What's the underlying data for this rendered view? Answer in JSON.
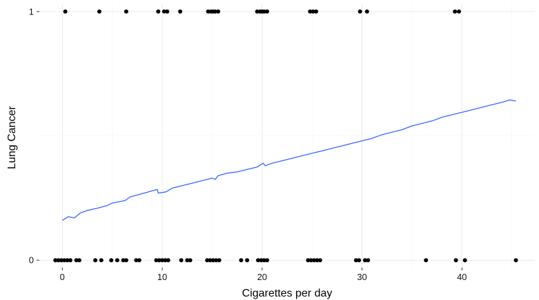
{
  "chart_data": {
    "type": "scatter",
    "title": "",
    "xlabel": "Cigarettes per day",
    "ylabel": "Lung Cancer",
    "xlim": [
      -2.3,
      47.3
    ],
    "ylim": [
      -0.03,
      1.03
    ],
    "x_ticks": [
      0,
      10,
      20,
      30,
      40
    ],
    "x_tick_labels": [
      "0",
      "10",
      "20",
      "30",
      "40"
    ],
    "y_ticks": [
      0,
      1
    ],
    "y_tick_labels": [
      "0",
      "1"
    ],
    "grid": true,
    "legend": "none",
    "series": [
      {
        "type": "scatter",
        "color": "#000000",
        "points": [
          {
            "x": 0.3,
            "y": 1
          },
          {
            "x": 3.7,
            "y": 1
          },
          {
            "x": 6.4,
            "y": 1
          },
          {
            "x": 9.6,
            "y": 1
          },
          {
            "x": 10.2,
            "y": 1
          },
          {
            "x": 10.5,
            "y": 1
          },
          {
            "x": 11.8,
            "y": 1
          },
          {
            "x": 14.6,
            "y": 1
          },
          {
            "x": 14.9,
            "y": 1
          },
          {
            "x": 15.1,
            "y": 1
          },
          {
            "x": 15.3,
            "y": 1
          },
          {
            "x": 15.6,
            "y": 1
          },
          {
            "x": 19.5,
            "y": 1
          },
          {
            "x": 19.8,
            "y": 1
          },
          {
            "x": 20.0,
            "y": 1
          },
          {
            "x": 20.2,
            "y": 1
          },
          {
            "x": 20.5,
            "y": 1
          },
          {
            "x": 24.8,
            "y": 1
          },
          {
            "x": 25.1,
            "y": 1
          },
          {
            "x": 25.4,
            "y": 1
          },
          {
            "x": 29.8,
            "y": 1
          },
          {
            "x": 30.5,
            "y": 1
          },
          {
            "x": 39.3,
            "y": 1
          },
          {
            "x": 39.7,
            "y": 1
          },
          {
            "x": -0.7,
            "y": 0
          },
          {
            "x": -0.4,
            "y": 0
          },
          {
            "x": -0.1,
            "y": 0
          },
          {
            "x": 0.2,
            "y": 0
          },
          {
            "x": 0.5,
            "y": 0
          },
          {
            "x": 0.8,
            "y": 0
          },
          {
            "x": 1.4,
            "y": 0
          },
          {
            "x": 1.7,
            "y": 0
          },
          {
            "x": 3.3,
            "y": 0
          },
          {
            "x": 3.9,
            "y": 0
          },
          {
            "x": 4.9,
            "y": 0
          },
          {
            "x": 5.5,
            "y": 0
          },
          {
            "x": 6.1,
            "y": 0
          },
          {
            "x": 6.4,
            "y": 0
          },
          {
            "x": 7.4,
            "y": 0
          },
          {
            "x": 7.7,
            "y": 0
          },
          {
            "x": 9.4,
            "y": 0
          },
          {
            "x": 9.7,
            "y": 0
          },
          {
            "x": 10.0,
            "y": 0
          },
          {
            "x": 10.3,
            "y": 0
          },
          {
            "x": 10.6,
            "y": 0
          },
          {
            "x": 11.9,
            "y": 0
          },
          {
            "x": 12.5,
            "y": 0
          },
          {
            "x": 12.8,
            "y": 0
          },
          {
            "x": 14.5,
            "y": 0
          },
          {
            "x": 14.8,
            "y": 0
          },
          {
            "x": 15.1,
            "y": 0
          },
          {
            "x": 15.4,
            "y": 0
          },
          {
            "x": 15.7,
            "y": 0
          },
          {
            "x": 17.9,
            "y": 0
          },
          {
            "x": 18.5,
            "y": 0
          },
          {
            "x": 19.6,
            "y": 0
          },
          {
            "x": 19.9,
            "y": 0
          },
          {
            "x": 20.2,
            "y": 0
          },
          {
            "x": 20.5,
            "y": 0
          },
          {
            "x": 24.6,
            "y": 0
          },
          {
            "x": 24.9,
            "y": 0
          },
          {
            "x": 25.2,
            "y": 0
          },
          {
            "x": 25.5,
            "y": 0
          },
          {
            "x": 25.8,
            "y": 0
          },
          {
            "x": 29.4,
            "y": 0
          },
          {
            "x": 29.7,
            "y": 0
          },
          {
            "x": 30.3,
            "y": 0
          },
          {
            "x": 30.6,
            "y": 0
          },
          {
            "x": 36.4,
            "y": 0
          },
          {
            "x": 39.4,
            "y": 0
          },
          {
            "x": 40.3,
            "y": 0
          },
          {
            "x": 45.4,
            "y": 0
          }
        ]
      },
      {
        "type": "line",
        "color": "#3366ff",
        "points": [
          {
            "x": 0.0,
            "y": 0.16
          },
          {
            "x": 0.6,
            "y": 0.175
          },
          {
            "x": 1.2,
            "y": 0.17
          },
          {
            "x": 1.8,
            "y": 0.19
          },
          {
            "x": 2.5,
            "y": 0.2
          },
          {
            "x": 3.6,
            "y": 0.21
          },
          {
            "x": 4.5,
            "y": 0.22
          },
          {
            "x": 5.0,
            "y": 0.23
          },
          {
            "x": 6.3,
            "y": 0.24
          },
          {
            "x": 6.8,
            "y": 0.255
          },
          {
            "x": 7.3,
            "y": 0.26
          },
          {
            "x": 8.2,
            "y": 0.27
          },
          {
            "x": 9.5,
            "y": 0.285
          },
          {
            "x": 9.6,
            "y": 0.27
          },
          {
            "x": 10.4,
            "y": 0.275
          },
          {
            "x": 11.0,
            "y": 0.29
          },
          {
            "x": 12.0,
            "y": 0.3
          },
          {
            "x": 13.0,
            "y": 0.31
          },
          {
            "x": 14.0,
            "y": 0.32
          },
          {
            "x": 15.0,
            "y": 0.33
          },
          {
            "x": 15.3,
            "y": 0.325
          },
          {
            "x": 15.6,
            "y": 0.34
          },
          {
            "x": 16.5,
            "y": 0.35
          },
          {
            "x": 17.5,
            "y": 0.355
          },
          {
            "x": 18.5,
            "y": 0.365
          },
          {
            "x": 19.5,
            "y": 0.375
          },
          {
            "x": 20.1,
            "y": 0.39
          },
          {
            "x": 20.3,
            "y": 0.38
          },
          {
            "x": 21.0,
            "y": 0.39
          },
          {
            "x": 22.0,
            "y": 0.4
          },
          {
            "x": 23.0,
            "y": 0.41
          },
          {
            "x": 24.0,
            "y": 0.42
          },
          {
            "x": 25.0,
            "y": 0.43
          },
          {
            "x": 26.0,
            "y": 0.44
          },
          {
            "x": 27.0,
            "y": 0.45
          },
          {
            "x": 28.0,
            "y": 0.46
          },
          {
            "x": 29.0,
            "y": 0.47
          },
          {
            "x": 30.0,
            "y": 0.48
          },
          {
            "x": 31.0,
            "y": 0.49
          },
          {
            "x": 32.0,
            "y": 0.505
          },
          {
            "x": 33.0,
            "y": 0.515
          },
          {
            "x": 34.0,
            "y": 0.525
          },
          {
            "x": 35.0,
            "y": 0.54
          },
          {
            "x": 36.0,
            "y": 0.55
          },
          {
            "x": 37.0,
            "y": 0.56
          },
          {
            "x": 38.0,
            "y": 0.575
          },
          {
            "x": 39.0,
            "y": 0.585
          },
          {
            "x": 40.0,
            "y": 0.595
          },
          {
            "x": 41.0,
            "y": 0.605
          },
          {
            "x": 42.0,
            "y": 0.615
          },
          {
            "x": 43.0,
            "y": 0.625
          },
          {
            "x": 44.0,
            "y": 0.635
          },
          {
            "x": 44.8,
            "y": 0.645
          },
          {
            "x": 45.4,
            "y": 0.64
          }
        ]
      }
    ]
  }
}
